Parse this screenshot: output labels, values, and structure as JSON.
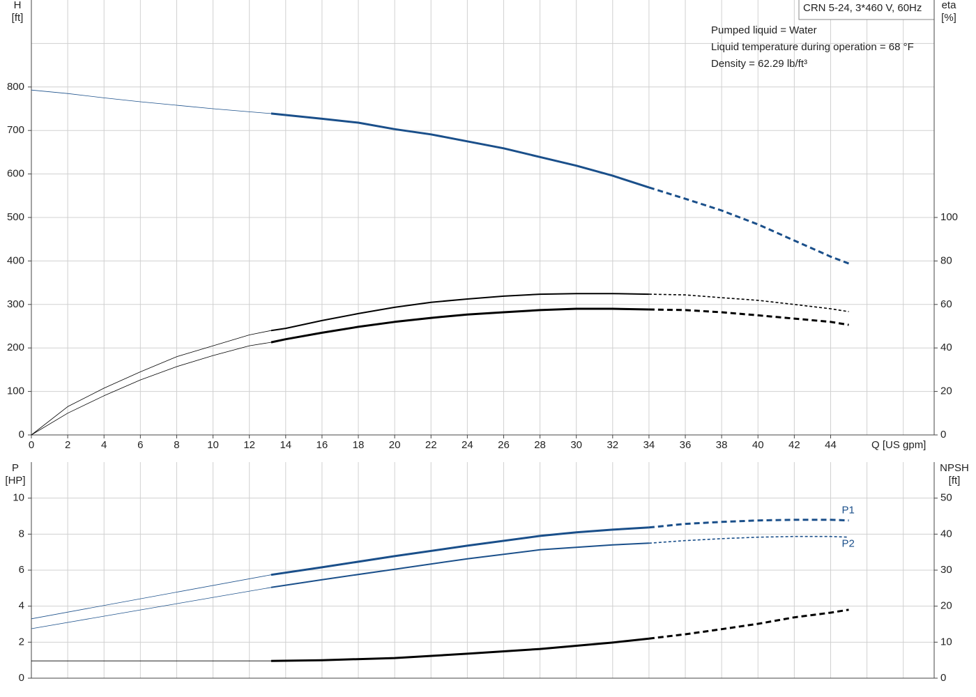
{
  "chart_data": [
    {
      "type": "line",
      "title": "CRN 5-24, 3*460 V, 60Hz",
      "annotations": [
        "Pumped liquid = Water",
        "Liquid temperature during operation = 68 °F",
        "Density = 62.29 lb/ft³"
      ],
      "xlabel": "Q [US gpm]",
      "ylabel": [
        "H",
        "[ft]"
      ],
      "y2label": [
        "eta",
        "[%]"
      ],
      "xlim": [
        0,
        49.7
      ],
      "xticks": [
        0,
        2,
        4,
        6,
        8,
        10,
        12,
        14,
        16,
        18,
        20,
        22,
        24,
        26,
        28,
        30,
        32,
        34,
        36,
        38,
        40,
        42,
        44
      ],
      "xgrid": [
        0,
        2,
        4,
        6,
        8,
        10,
        12,
        14,
        16,
        18,
        20,
        22,
        24,
        26,
        28,
        30,
        32,
        34,
        36,
        38,
        40,
        42,
        44,
        46,
        48
      ],
      "ylim": [
        0,
        1000
      ],
      "yticks": [
        0,
        100,
        200,
        300,
        400,
        500,
        600,
        700,
        800
      ],
      "ygrid": [
        0,
        100,
        200,
        300,
        400,
        500,
        600,
        700,
        800,
        900
      ],
      "y2lim": [
        0,
        200
      ],
      "y2ticks": [
        0,
        20,
        40,
        60,
        80,
        100
      ],
      "series": [
        {
          "color": "#1a4f8a",
          "axis": "y",
          "segments": [
            {
              "style": "thin",
              "x": [
                0,
                2,
                4,
                6,
                8,
                10,
                12,
                13.2
              ],
              "values": [
                793,
                785,
                775,
                766,
                758,
                750,
                743,
                739
              ]
            },
            {
              "style": "thick",
              "x": [
                13.2,
                16,
                18,
                20,
                22,
                24,
                26,
                28,
                30,
                32,
                34
              ],
              "values": [
                739,
                727,
                718,
                703,
                691,
                675,
                659,
                639,
                619,
                596,
                569
              ]
            },
            {
              "style": "dashed-thick",
              "x": [
                34,
                36,
                38,
                40,
                42,
                44,
                45
              ],
              "values": [
                569,
                543,
                516,
                484,
                447,
                410,
                394
              ]
            }
          ]
        },
        {
          "color": "#000000",
          "axis": "y2",
          "segments": [
            {
              "style": "thin",
              "x": [
                0,
                2,
                4,
                6,
                8,
                10,
                12,
                13.2
              ],
              "values": [
                0,
                13,
                21.5,
                29,
                36,
                41,
                46,
                48
              ]
            },
            {
              "style": "medium",
              "x": [
                13.2,
                14,
                16,
                18,
                20,
                22,
                24,
                26,
                28,
                30,
                32,
                34
              ],
              "values": [
                48,
                49,
                52.6,
                55.8,
                58.7,
                61,
                62.5,
                63.8,
                64.7,
                65,
                65,
                64.7
              ]
            },
            {
              "style": "dashed-medium",
              "x": [
                34,
                36,
                38,
                40,
                42,
                44,
                45
              ],
              "values": [
                64.7,
                64.4,
                63.1,
                61.9,
                60,
                58,
                56.7
              ]
            }
          ]
        },
        {
          "color": "#000000",
          "axis": "y2",
          "segments": [
            {
              "style": "thin",
              "x": [
                0,
                2,
                4,
                6,
                8,
                10,
                12,
                13.2
              ],
              "values": [
                0,
                10,
                18,
                25.3,
                31.4,
                36.5,
                41,
                42.6
              ]
            },
            {
              "style": "thick",
              "x": [
                13.2,
                14,
                16,
                18,
                20,
                22,
                24,
                26,
                28,
                30,
                32,
                34
              ],
              "values": [
                42.6,
                44,
                47,
                49.7,
                52,
                53.8,
                55.4,
                56.4,
                57.4,
                58,
                58,
                57.7
              ]
            },
            {
              "style": "dashed-thick",
              "x": [
                34,
                36,
                38,
                40,
                42,
                44,
                45
              ],
              "values": [
                57.7,
                57.4,
                56.4,
                55,
                53.5,
                52,
                50.6
              ]
            }
          ]
        }
      ]
    },
    {
      "type": "line",
      "ylabel": [
        "P",
        "[HP]"
      ],
      "y2label": [
        "NPSH",
        "[ft]"
      ],
      "xlim": [
        0,
        49.7
      ],
      "xgrid": [
        0,
        2,
        4,
        6,
        8,
        10,
        12,
        14,
        16,
        18,
        20,
        22,
        24,
        26,
        28,
        30,
        32,
        34,
        36,
        38,
        40,
        42,
        44,
        46,
        48
      ],
      "ylim": [
        0,
        12
      ],
      "yticks": [
        0,
        2,
        4,
        6,
        8,
        10
      ],
      "ygrid": [
        0,
        2,
        4,
        6,
        8,
        10
      ],
      "y2lim": [
        0,
        60
      ],
      "y2ticks": [
        0,
        10,
        20,
        30,
        40,
        50
      ],
      "series": [
        {
          "name": "P1",
          "label_position": "above",
          "color": "#1a4f8a",
          "axis": "y",
          "segments": [
            {
              "style": "thin",
              "x": [
                0,
                13.2
              ],
              "values": [
                3.3,
                5.74
              ]
            },
            {
              "style": "thick",
              "x": [
                13.2,
                16,
                20,
                24,
                28,
                30,
                32,
                34
              ],
              "values": [
                5.74,
                6.16,
                6.78,
                7.36,
                7.9,
                8.1,
                8.25,
                8.37
              ]
            },
            {
              "style": "dashed-thick",
              "x": [
                34,
                36,
                38,
                40,
                42,
                44,
                45
              ],
              "values": [
                8.37,
                8.57,
                8.68,
                8.76,
                8.8,
                8.8,
                8.76
              ]
            }
          ]
        },
        {
          "name": "P2",
          "label_position": "below",
          "color": "#1a4f8a",
          "axis": "y",
          "segments": [
            {
              "style": "thin",
              "x": [
                0,
                13.2
              ],
              "values": [
                2.75,
                5.04
              ]
            },
            {
              "style": "medium",
              "x": [
                13.2,
                16,
                20,
                24,
                28,
                32,
                34
              ],
              "values": [
                5.04,
                5.47,
                6.05,
                6.63,
                7.13,
                7.4,
                7.5
              ]
            },
            {
              "style": "dashed-medium",
              "x": [
                34,
                36,
                38,
                40,
                42,
                44,
                45
              ],
              "values": [
                7.5,
                7.64,
                7.75,
                7.83,
                7.87,
                7.87,
                7.83
              ]
            }
          ]
        },
        {
          "color": "#000000",
          "axis": "y2",
          "segments": [
            {
              "style": "thin",
              "x": [
                0,
                13.2
              ],
              "values": [
                4.8,
                4.8
              ]
            },
            {
              "style": "thick",
              "x": [
                13.2,
                16,
                20,
                24,
                28,
                32,
                34
              ],
              "values": [
                4.8,
                5,
                5.6,
                6.8,
                8.1,
                9.9,
                11
              ]
            },
            {
              "style": "dashed-thick",
              "x": [
                34,
                36,
                38,
                40,
                42,
                44,
                45
              ],
              "values": [
                11,
                12.2,
                13.6,
                15.1,
                16.9,
                18.2,
                19
              ]
            }
          ]
        }
      ]
    }
  ]
}
